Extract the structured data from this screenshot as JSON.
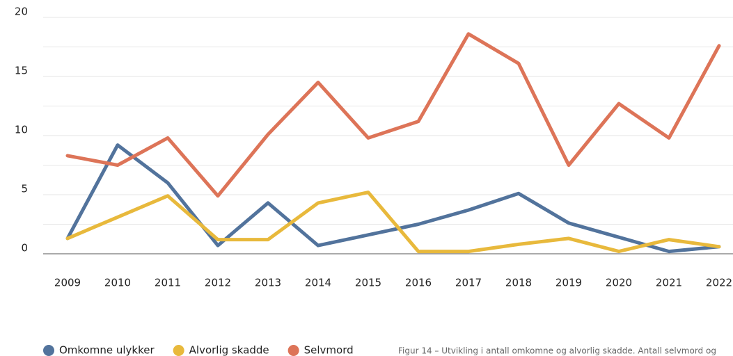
{
  "chart_data": {
    "type": "line",
    "categories": [
      "2009",
      "2010",
      "2011",
      "2012",
      "2013",
      "2014",
      "2015",
      "2016",
      "2017",
      "2018",
      "2019",
      "2020",
      "2021",
      "2022"
    ],
    "series": [
      {
        "name": "Omkomne ulykker",
        "color": "#52739c",
        "values": [
          1.3,
          9.2,
          6.0,
          0.7,
          4.3,
          0.7,
          1.6,
          2.5,
          3.7,
          5.1,
          2.6,
          1.4,
          0.2,
          0.6
        ]
      },
      {
        "name": "Alvorlig skadde",
        "color": "#e8b93c",
        "values": [
          1.3,
          3.1,
          4.9,
          1.2,
          1.2,
          4.3,
          5.2,
          0.2,
          0.2,
          0.8,
          1.3,
          0.2,
          1.2,
          0.6
        ]
      },
      {
        "name": "Selvmord",
        "color": "#dd7458",
        "values": [
          8.3,
          7.5,
          9.8,
          4.9,
          10.1,
          14.5,
          9.8,
          11.2,
          18.6,
          16.1,
          7.5,
          12.7,
          9.8,
          17.6
        ]
      }
    ],
    "ylim": [
      0,
      20
    ],
    "yticks": [
      0,
      5,
      10,
      15,
      20
    ],
    "minor_yticks": [
      2.5,
      7.5,
      12.5,
      17.5
    ],
    "grid": true,
    "legend": "bottom",
    "caption": "Figur 14 – Utvikling i antall omkomne og alvorlig skadde. Antall selvmord og"
  }
}
